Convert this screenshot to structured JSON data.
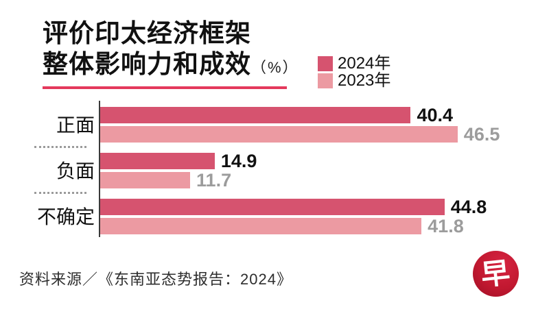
{
  "title": {
    "line1": "评价印太经济框架",
    "line2": "整体影响力和成效",
    "unit": "（%）"
  },
  "legend": {
    "items": [
      {
        "label": "2024年",
        "color": "#d6536f"
      },
      {
        "label": "2023年",
        "color": "#ec9aa2"
      }
    ]
  },
  "chart_data": {
    "type": "bar",
    "orientation": "horizontal",
    "title": "评价印太经济框架整体影响力和成效（%）",
    "categories": [
      "正面",
      "负面",
      "不确定"
    ],
    "series": [
      {
        "name": "2024年",
        "color": "#d6536f",
        "values": [
          40.4,
          14.9,
          44.8
        ]
      },
      {
        "name": "2023年",
        "color": "#ec9aa2",
        "values": [
          46.5,
          11.7,
          41.8
        ]
      }
    ],
    "xlim": [
      0,
      50
    ],
    "grid": false,
    "legend_position": "top-right",
    "value_labels": true,
    "value_label_colors": {
      "2024年": "#111111",
      "2023年": "#9c9c9c"
    }
  },
  "accent": {
    "title_underline_color": "#e4395c",
    "axis_color": "#3a3a3a",
    "separator_color": "#9a9a9a"
  },
  "source": "资料来源／《东南亚态势报告：2024》",
  "logo": {
    "char": "早",
    "bg_color": "#c11830"
  }
}
